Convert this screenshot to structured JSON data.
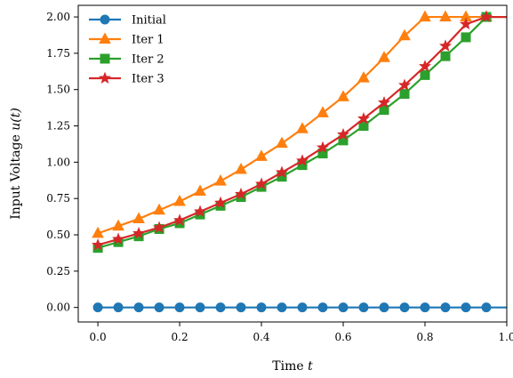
{
  "chart_data": {
    "type": "line",
    "title": "",
    "xlabel": "Time",
    "xlabel_var": "t",
    "ylabel": "Input Voltage",
    "ylabel_var": "u(t)",
    "xlim": [
      -0.048,
      1.0
    ],
    "ylim": [
      -0.1,
      2.08
    ],
    "xticks": [
      0.0,
      0.2,
      0.4,
      0.6,
      0.8,
      1.0
    ],
    "xtick_labels": [
      "0.0",
      "0.2",
      "0.4",
      "0.6",
      "0.8",
      "1.0"
    ],
    "yticks": [
      0.0,
      0.25,
      0.5,
      0.75,
      1.0,
      1.25,
      1.5,
      1.75,
      2.0
    ],
    "ytick_labels": [
      "0.00",
      "0.25",
      "0.50",
      "0.75",
      "1.00",
      "1.25",
      "1.50",
      "1.75",
      "2.00"
    ],
    "grid": false,
    "legend_position": "top-left",
    "x": [
      0.0,
      0.05,
      0.1,
      0.15,
      0.2,
      0.25,
      0.3,
      0.35,
      0.4,
      0.45,
      0.5,
      0.55,
      0.6,
      0.65,
      0.7,
      0.75,
      0.8,
      0.85,
      0.9,
      0.95
    ],
    "series": [
      {
        "name": "Initial",
        "color": "#1f77b4",
        "marker": "circle",
        "x": [
          0.0,
          0.05,
          0.1,
          0.15,
          0.2,
          0.25,
          0.3,
          0.35,
          0.4,
          0.45,
          0.5,
          0.55,
          0.6,
          0.65,
          0.7,
          0.75,
          0.8,
          0.85,
          0.9,
          0.95,
          1.0
        ],
        "values": [
          0,
          0,
          0,
          0,
          0,
          0,
          0,
          0,
          0,
          0,
          0,
          0,
          0,
          0,
          0,
          0,
          0,
          0,
          0,
          0,
          0
        ],
        "marker_mask": [
          1,
          1,
          1,
          1,
          1,
          1,
          1,
          1,
          1,
          1,
          1,
          1,
          1,
          1,
          1,
          1,
          1,
          1,
          1,
          1,
          0
        ]
      },
      {
        "name": "Iter 1",
        "color": "#ff7f0e",
        "marker": "triangle",
        "x": [
          0.0,
          0.05,
          0.1,
          0.15,
          0.2,
          0.25,
          0.3,
          0.35,
          0.4,
          0.45,
          0.5,
          0.55,
          0.6,
          0.65,
          0.7,
          0.75,
          0.8,
          0.85,
          0.9,
          0.95,
          1.0
        ],
        "values": [
          0.51,
          0.56,
          0.61,
          0.67,
          0.73,
          0.8,
          0.87,
          0.95,
          1.04,
          1.13,
          1.23,
          1.34,
          1.45,
          1.58,
          1.72,
          1.87,
          2.0,
          2.0,
          2.0,
          2.0,
          2.0
        ],
        "marker_mask": [
          1,
          1,
          1,
          1,
          1,
          1,
          1,
          1,
          1,
          1,
          1,
          1,
          1,
          1,
          1,
          1,
          1,
          1,
          1,
          1,
          0
        ]
      },
      {
        "name": "Iter 2",
        "color": "#2ca02c",
        "marker": "square",
        "x": [
          0.0,
          0.05,
          0.1,
          0.15,
          0.2,
          0.25,
          0.3,
          0.35,
          0.4,
          0.45,
          0.5,
          0.55,
          0.6,
          0.65,
          0.7,
          0.75,
          0.8,
          0.85,
          0.9,
          0.95,
          1.0
        ],
        "values": [
          0.41,
          0.45,
          0.49,
          0.54,
          0.58,
          0.64,
          0.7,
          0.76,
          0.83,
          0.9,
          0.98,
          1.06,
          1.15,
          1.25,
          1.36,
          1.47,
          1.6,
          1.73,
          1.86,
          2.0,
          2.0
        ],
        "marker_mask": [
          1,
          1,
          1,
          1,
          1,
          1,
          1,
          1,
          1,
          1,
          1,
          1,
          1,
          1,
          1,
          1,
          1,
          1,
          1,
          1,
          0
        ]
      },
      {
        "name": "Iter 3",
        "color": "#d62728",
        "marker": "star",
        "x": [
          0.0,
          0.05,
          0.1,
          0.15,
          0.2,
          0.25,
          0.3,
          0.35,
          0.4,
          0.45,
          0.5,
          0.55,
          0.6,
          0.65,
          0.7,
          0.75,
          0.8,
          0.85,
          0.9,
          0.95,
          1.0
        ],
        "values": [
          0.43,
          0.47,
          0.51,
          0.55,
          0.6,
          0.66,
          0.72,
          0.78,
          0.85,
          0.93,
          1.01,
          1.1,
          1.19,
          1.3,
          1.41,
          1.53,
          1.66,
          1.8,
          1.95,
          2.0,
          2.0
        ],
        "marker_mask": [
          1,
          1,
          1,
          1,
          1,
          1,
          1,
          1,
          1,
          1,
          1,
          1,
          1,
          1,
          1,
          1,
          1,
          1,
          1,
          1,
          0
        ]
      }
    ]
  }
}
